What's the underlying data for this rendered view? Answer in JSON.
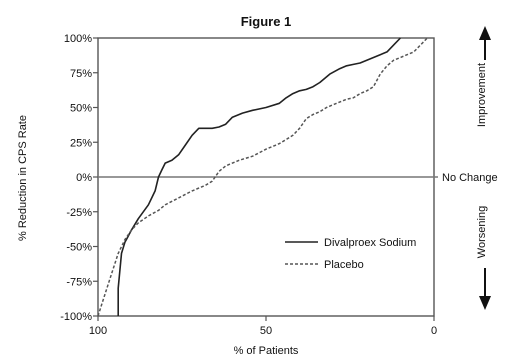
{
  "chart_data": {
    "type": "line",
    "title": "Figure 1",
    "xlabel": "% of Patients",
    "ylabel": "% Reduction in CPS Rate",
    "xlim": [
      100,
      0
    ],
    "ylim": [
      -100,
      100
    ],
    "x_ticks": [
      "100",
      "50",
      "0"
    ],
    "x_tick_values": [
      100,
      50,
      0
    ],
    "y_ticks": [
      "100%",
      "75%",
      "50%",
      "25%",
      "0%",
      "-25%",
      "-50%",
      "-75%",
      "-100%"
    ],
    "y_tick_values": [
      100,
      75,
      50,
      25,
      0,
      -25,
      -50,
      -75,
      -100
    ],
    "grid": false,
    "legend": "bottom-right",
    "reference_line": {
      "y": 0,
      "label": "No Change"
    },
    "right_annotations": {
      "up": "Improvement",
      "down": "Worsening"
    },
    "series": [
      {
        "name": "Divalproex Sodium",
        "style": "solid",
        "color": "#222222",
        "x": [
          94,
          94,
          93,
          92,
          90,
          88,
          85,
          83,
          82,
          81,
          80,
          78,
          76,
          74,
          72,
          70,
          68,
          66,
          64,
          62,
          60,
          57,
          54,
          50,
          46,
          44,
          42,
          40,
          38,
          36,
          34,
          31,
          28,
          26,
          24,
          22,
          20,
          18,
          16,
          14,
          12,
          10
        ],
        "y": [
          -100,
          -80,
          -55,
          -47,
          -38,
          -30,
          -20,
          -10,
          0,
          5,
          10,
          12,
          16,
          23,
          30,
          35,
          35,
          35,
          36,
          38,
          43,
          46,
          48,
          50,
          53,
          57,
          60,
          62,
          63,
          65,
          68,
          74,
          78,
          80,
          81,
          82,
          84,
          86,
          88,
          90,
          95,
          100
        ]
      },
      {
        "name": "Placebo",
        "style": "dashed",
        "color": "#555555",
        "x": [
          100,
          98,
          96,
          94,
          92,
          90,
          88,
          85,
          82,
          80,
          76,
          72,
          68,
          66,
          64,
          62,
          58,
          54,
          50,
          46,
          44,
          42,
          40,
          38,
          36,
          34,
          32,
          30,
          28,
          26,
          24,
          22,
          20,
          18,
          16,
          14,
          12,
          10,
          8,
          6,
          4,
          2
        ],
        "y": [
          -100,
          -85,
          -70,
          -55,
          -45,
          -38,
          -33,
          -28,
          -24,
          -20,
          -15,
          -10,
          -6,
          -3,
          4,
          8,
          12,
          15,
          20,
          24,
          27,
          30,
          35,
          42,
          45,
          47,
          50,
          52,
          54,
          56,
          57,
          60,
          62,
          65,
          74,
          80,
          84,
          86,
          88,
          90,
          95,
          100
        ]
      }
    ]
  }
}
